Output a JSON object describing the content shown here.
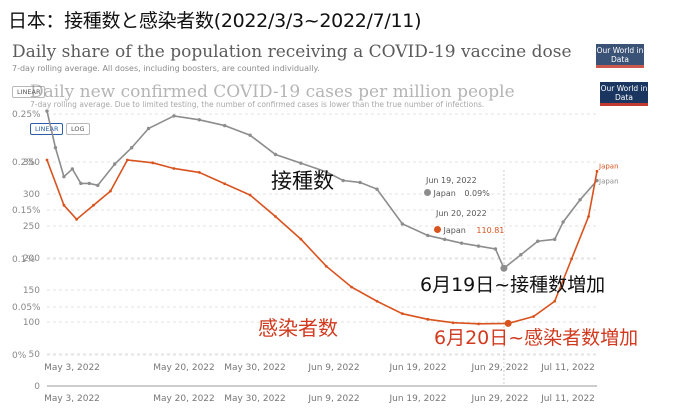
{
  "main_title": "日本：接種数と感染者数(2022/3/3~2022/7/11)",
  "vaccine_chart": {
    "title": "Daily share of the population receiving a COVID-19 vaccine dose",
    "subtitle": "7-day rolling average. All doses, including boosters, are counted individually.",
    "toggle_label": "LINEAR",
    "logo": "Our World in Data"
  },
  "cases_chart": {
    "title": "Daily new confirmed COVID-19 cases per million people",
    "subtitle": "7-day rolling average. Due to limited testing, the number of confirmed cases is lower than the true number of infections.",
    "toggle_linear": "LINEAR",
    "toggle_log": "LOG",
    "logo": "Our World in Data"
  },
  "annotations": {
    "vaccinations": "接種数",
    "vaccinations_increase": "6月19日~接種数増加",
    "cases": "感染者数",
    "cases_increase": "6月20日~感染者数増加"
  },
  "tooltips": {
    "vaccine_date": "Jun 19, 2022",
    "vaccine_country": "Japan",
    "vaccine_value": "0.09%",
    "cases_date": "Jun 20, 2022",
    "cases_country": "Japan",
    "cases_value": "110.81"
  },
  "colors": {
    "vaccine_line": "#8d8d8d",
    "cases_line": "#d9531e",
    "grid": "#e3e3e3"
  },
  "chart_data": [
    {
      "type": "line",
      "x": [
        "2022-03-03",
        "2022-03-05",
        "2022-03-07",
        "2022-03-09",
        "2022-03-11",
        "2022-03-13",
        "2022-03-15",
        "2022-03-19",
        "2022-03-23",
        "2022-03-27",
        "2022-04-02",
        "2022-04-08",
        "2022-04-14",
        "2022-04-20",
        "2022-04-26",
        "2022-05-02",
        "2022-05-08",
        "2022-05-12",
        "2022-05-16",
        "2022-05-20",
        "2022-05-26",
        "2022-06-01",
        "2022-06-05",
        "2022-06-09",
        "2022-06-13",
        "2022-06-17",
        "2022-06-19",
        "2022-06-23",
        "2022-06-27",
        "2022-07-01",
        "2022-07-03",
        "2022-07-07",
        "2022-07-11"
      ],
      "series": [
        {
          "name": "Japan",
          "values": [
            0.253,
            0.215,
            0.185,
            0.193,
            0.178,
            0.178,
            0.176,
            0.198,
            0.215,
            0.235,
            0.248,
            0.244,
            0.238,
            0.228,
            0.208,
            0.199,
            0.19,
            0.181,
            0.179,
            0.172,
            0.136,
            0.124,
            0.12,
            0.116,
            0.113,
            0.11,
            0.09,
            0.104,
            0.118,
            0.12,
            0.138,
            0.161,
            0.181
          ]
        }
      ],
      "title": "Daily share of the population receiving a COVID-19 vaccine dose",
      "ylabel": "",
      "y_ticks": [
        "0.25%",
        "0.2%",
        "0.15%",
        "0.1%",
        "0.05%",
        "0%"
      ],
      "x_ticks": [
        "May 3, 2022",
        "May 20, 2022",
        "May 30, 2022",
        "Jun 9, 2022",
        "Jun 19, 2022",
        "Jun 29, 2022",
        "Jul 11, 2022"
      ],
      "ylim": [
        0,
        0.25
      ]
    },
    {
      "type": "line",
      "x": [
        "2022-03-03",
        "2022-03-07",
        "2022-03-10",
        "2022-03-14",
        "2022-03-18",
        "2022-03-22",
        "2022-03-28",
        "2022-04-02",
        "2022-04-08",
        "2022-04-14",
        "2022-04-20",
        "2022-04-26",
        "2022-05-02",
        "2022-05-08",
        "2022-05-14",
        "2022-05-20",
        "2022-05-26",
        "2022-06-01",
        "2022-06-07",
        "2022-06-13",
        "2022-06-20",
        "2022-06-26",
        "2022-07-01",
        "2022-07-05",
        "2022-07-09",
        "2022-07-11"
      ],
      "series": [
        {
          "name": "Japan",
          "values": [
            400,
            320,
            295,
            320,
            345,
            400,
            395,
            385,
            378,
            358,
            338,
            300,
            260,
            212,
            175,
            150,
            128,
            118,
            112,
            110,
            110.81,
            123,
            150,
            225,
            300,
            380
          ]
        }
      ],
      "title": "Daily new confirmed COVID-19 cases per million people",
      "ylabel": "",
      "y_ticks": [
        "350",
        "300",
        "250",
        "200",
        "150",
        "100",
        "50",
        "0"
      ],
      "x_ticks": [
        "May 3, 2022",
        "May 20, 2022",
        "May 30, 2022",
        "Jun 9, 2022",
        "Jun 19, 2022",
        "Jun 29, 2022",
        "Jul 11, 2022"
      ],
      "ylim": [
        0,
        400
      ]
    }
  ]
}
